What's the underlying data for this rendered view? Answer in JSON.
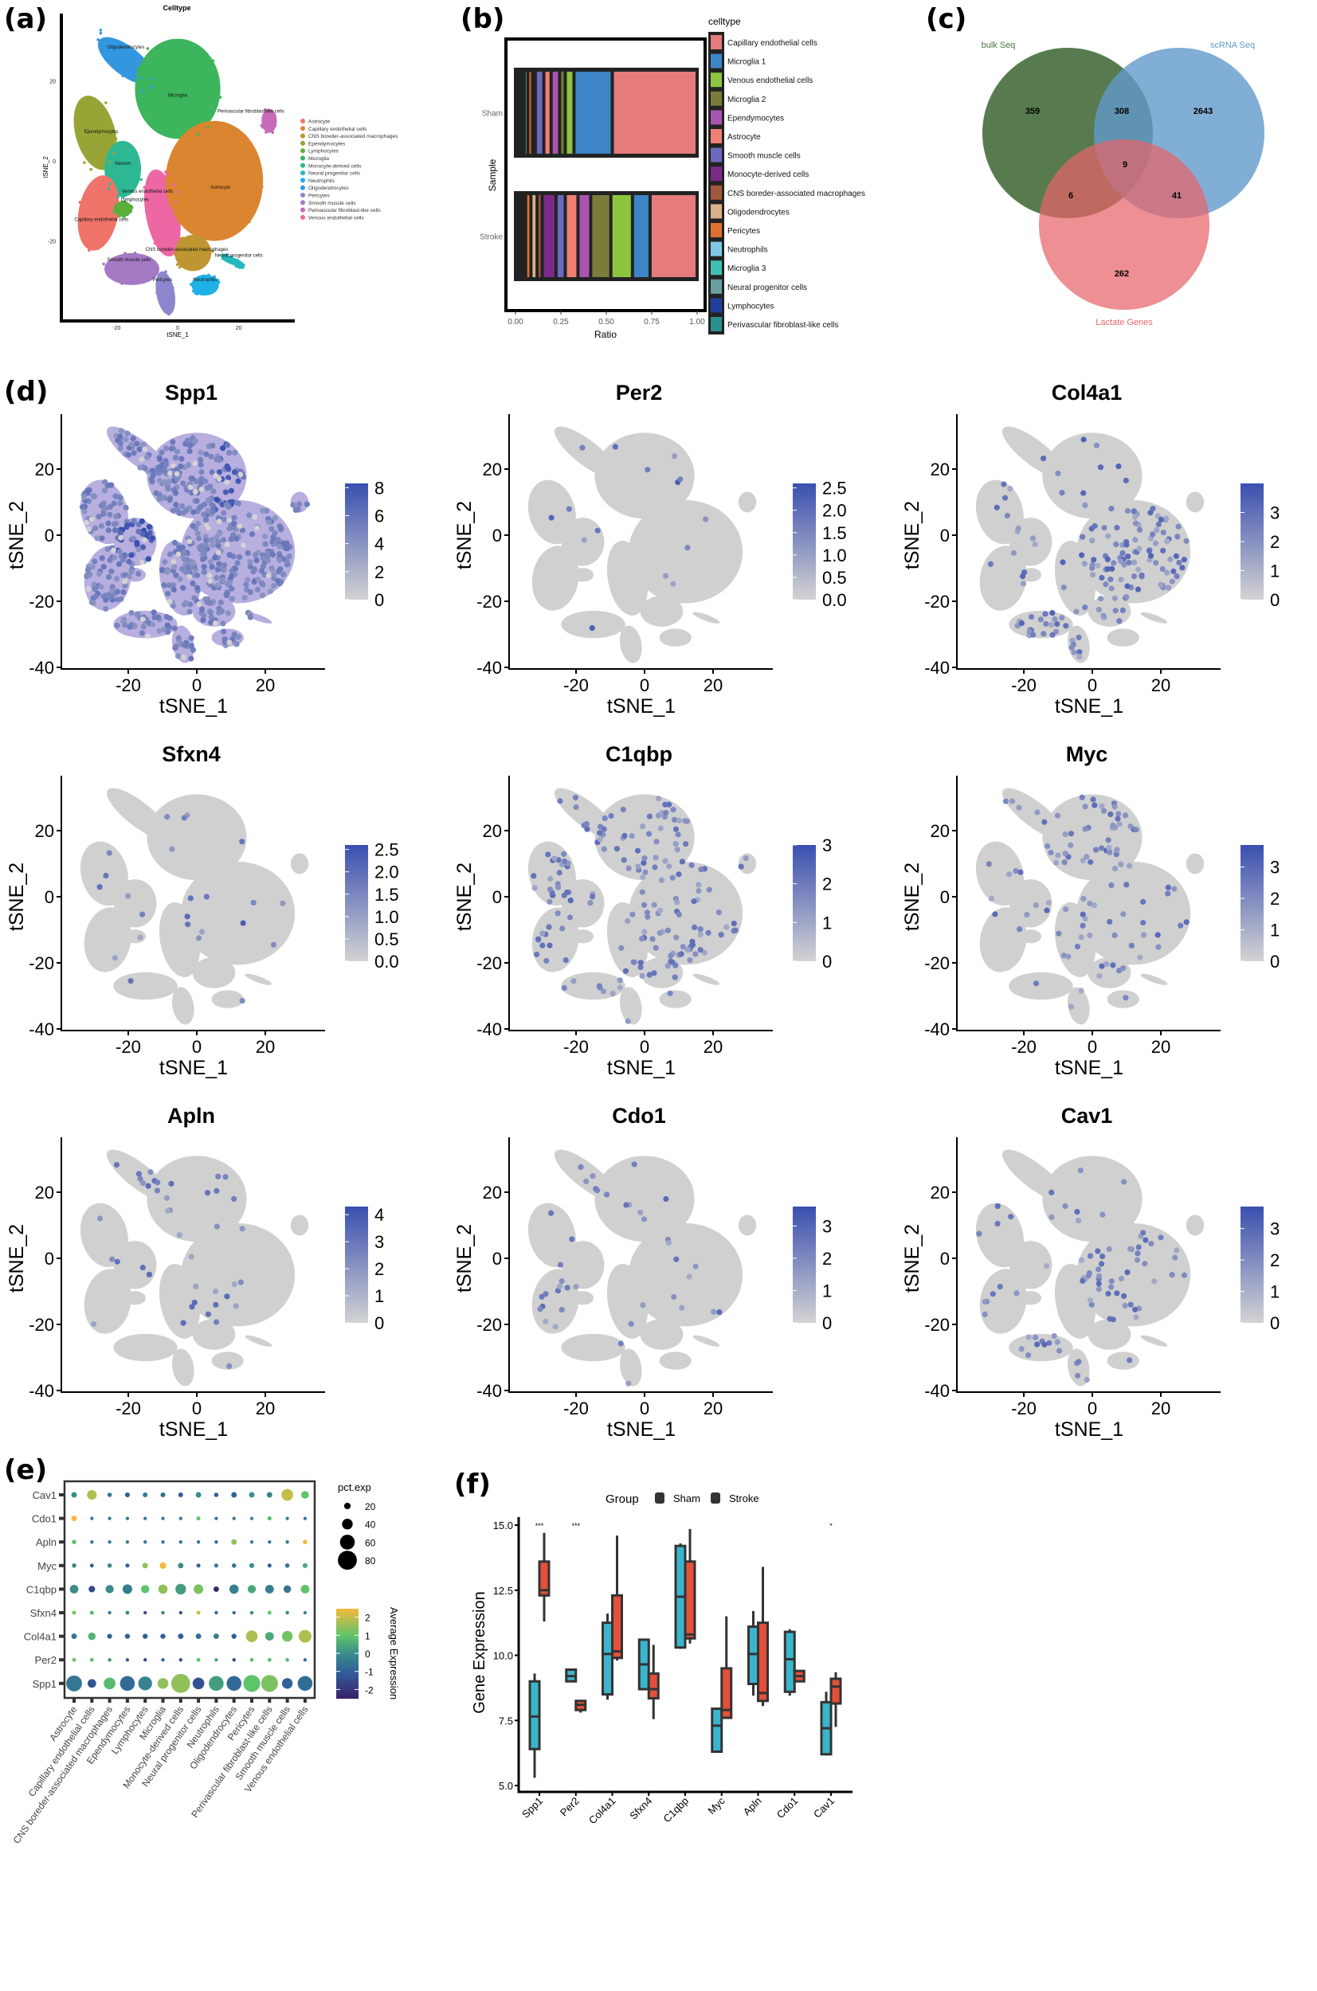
{
  "panel_labels": [
    "(a)",
    "(b)",
    "(c)",
    "(d)",
    "(e)",
    "(f)"
  ],
  "chart_data": [
    {
      "type": "scatter",
      "title": "Celltype",
      "xlabel": "tSNE_1",
      "ylabel": "tSNE_2",
      "xticks": [
        -20,
        0,
        20
      ],
      "yticks": [
        -20,
        0,
        20
      ],
      "legend": [
        {
          "name": "Astrocyte",
          "color": "#F0736A"
        },
        {
          "name": "Capillary endothelial cells",
          "color": "#DB8530"
        },
        {
          "name": "CNS boreder-associated macrophages",
          "color": "#BE9530"
        },
        {
          "name": "Ependymocytes",
          "color": "#98A435"
        },
        {
          "name": "Lymphocytes",
          "color": "#5BAE3C"
        },
        {
          "name": "Microglia",
          "color": "#3DB55C"
        },
        {
          "name": "Monocyte-derived cells",
          "color": "#2DB893"
        },
        {
          "name": "Neural progenitor cells",
          "color": "#22B9BE"
        },
        {
          "name": "Neutrophils",
          "color": "#1FB0E5"
        },
        {
          "name": "Oligodendrocytes",
          "color": "#3397DF"
        },
        {
          "name": "Pericytes",
          "color": "#8C86CC"
        },
        {
          "name": "Smooth muscle cells",
          "color": "#A47AC4"
        },
        {
          "name": "Perivascular fibroblast-like cells",
          "color": "#C76BB8"
        },
        {
          "name": "Venous endothelial cells",
          "color": "#EC67A3"
        }
      ],
      "cluster_labels": [
        "Oligodendrocytes",
        "Microglia",
        "Ependymocytes",
        "Neuron",
        "Capillary endothelial cells",
        "Venous endothelial cells",
        "Lymphocytes",
        "Astrocyte",
        "CNS boreder-associated macrophages",
        "Neural progenitor cells",
        "Smooth muscle cells",
        "Pericytes",
        "Neutrophils",
        "Perivascular fibroblast-like cells"
      ]
    },
    {
      "type": "bar",
      "orientation": "horizontal-stacked",
      "categories": [
        "Sham",
        "Stroke"
      ],
      "xlabel": "Ratio",
      "ylabel": "Sample",
      "xticks": [
        "0.00",
        "0.25",
        "0.50",
        "0.75",
        "1.00"
      ],
      "xlim": [
        0,
        1
      ],
      "legend_title": "celltype",
      "series": [
        {
          "name": "Capillary endothelial cells",
          "color": "#E57B7B",
          "values": [
            0.467,
            0.259
          ]
        },
        {
          "name": "Microglia 1",
          "color": "#3D85C6",
          "values": [
            0.211,
            0.097
          ]
        },
        {
          "name": "Venous endothelial cells",
          "color": "#8CC63F",
          "values": [
            0.048,
            0.119
          ]
        },
        {
          "name": "Microglia 2",
          "color": "#7B7B3A",
          "values": [
            0.031,
            0.111
          ]
        },
        {
          "name": "Ependymocytes",
          "color": "#A855B0",
          "values": [
            0.047,
            0.07
          ]
        },
        {
          "name": "Astrocyte",
          "color": "#F07F74",
          "values": [
            0.04,
            0.07
          ]
        },
        {
          "name": "Smooth muscle cells",
          "color": "#6A6AC0",
          "values": [
            0.047,
            0.051
          ]
        },
        {
          "name": "Monocyte-derived cells",
          "color": "#7B2A8A",
          "values": [
            0.005,
            0.076
          ]
        },
        {
          "name": "CNS boreder-associated macrophages",
          "color": "#A0583A",
          "values": [
            0.005,
            0.028
          ]
        },
        {
          "name": "Oligodendrocytes",
          "color": "#D9B38C",
          "values": [
            0.005,
            0.034
          ]
        },
        {
          "name": "Pericytes",
          "color": "#E07030",
          "values": [
            0.026,
            0.029
          ]
        },
        {
          "name": "Neutrophils",
          "color": "#7EC8E3",
          "values": [
            0.02,
            0.015
          ]
        },
        {
          "name": "Microglia 3",
          "color": "#40C0B0",
          "values": [
            0.015,
            0.012
          ]
        },
        {
          "name": "Neural progenitor cells",
          "color": "#6A9FA0",
          "values": [
            0.013,
            0.012
          ]
        },
        {
          "name": "Lymphocytes",
          "color": "#2040A0",
          "values": [
            0.01,
            0.009
          ]
        },
        {
          "name": "Perivascular fibroblast-like cells",
          "color": "#2A9090",
          "values": [
            0.01,
            0.008
          ]
        }
      ]
    },
    {
      "type": "venn",
      "sets": [
        {
          "name": "bulk Seq",
          "color": "#4E7444"
        },
        {
          "name": "scRNA Seq",
          "color": "#619ACB"
        },
        {
          "name": "Lactate Genes",
          "color": "#E8646A"
        }
      ],
      "regions": {
        "bulk_only": "359",
        "bulk_scrna": "308",
        "scrna_only": "2643",
        "all_three": "9",
        "bulk_lactate": "6",
        "scrna_lactate": "41",
        "lactate_only": "262"
      }
    },
    {
      "type": "scatter",
      "subtype": "feature-plot",
      "xlabel": "tSNE_1",
      "ylabel": "tSNE_2",
      "xticks": [
        -20,
        0,
        20
      ],
      "yticks": [
        -40,
        -20,
        0,
        20
      ],
      "low_color": "#D3D3D3",
      "high_color": "#3A4FB0",
      "genes": [
        {
          "title": "Spp1",
          "colorbar_ticks": [
            "0",
            "2",
            "4",
            "6",
            "8"
          ],
          "colorbar_range": [
            0,
            8.3
          ]
        },
        {
          "title": "Per2",
          "colorbar_ticks": [
            "0.0",
            "0.5",
            "1.0",
            "1.5",
            "2.0",
            "2.5"
          ],
          "colorbar_range": [
            0,
            2.6
          ]
        },
        {
          "title": "Col4a1",
          "colorbar_ticks": [
            "0",
            "1",
            "2",
            "3"
          ],
          "colorbar_range": [
            0,
            4.0
          ]
        },
        {
          "title": "Sfxn4",
          "colorbar_ticks": [
            "0.0",
            "0.5",
            "1.0",
            "1.5",
            "2.0",
            "2.5"
          ],
          "colorbar_range": [
            0,
            2.6
          ]
        },
        {
          "title": "C1qbp",
          "colorbar_ticks": [
            "0",
            "1",
            "2",
            "3"
          ],
          "colorbar_range": [
            0,
            3.0
          ]
        },
        {
          "title": "Myc",
          "colorbar_ticks": [
            "0",
            "1",
            "2",
            "3"
          ],
          "colorbar_range": [
            0,
            3.7
          ]
        },
        {
          "title": "Apln",
          "colorbar_ticks": [
            "0",
            "1",
            "2",
            "3",
            "4"
          ],
          "colorbar_range": [
            0,
            4.3
          ]
        },
        {
          "title": "Cdo1",
          "colorbar_ticks": [
            "0",
            "1",
            "2",
            "3"
          ],
          "colorbar_range": [
            0,
            3.6
          ]
        },
        {
          "title": "Cav1",
          "colorbar_ticks": [
            "0",
            "1",
            "2",
            "3"
          ],
          "colorbar_range": [
            0,
            3.7
          ]
        }
      ]
    },
    {
      "type": "dotplot",
      "genes": [
        "Cav1",
        "Cdo1",
        "Apln",
        "Myc",
        "C1qbp",
        "Sfxn4",
        "Col4a1",
        "Per2",
        "Spp1"
      ],
      "celltypes": [
        "Astrocyte",
        "Capillary endothelial cells",
        "CNS boreder-associated macrophages",
        "Ependymocytes",
        "Lymphocytes",
        "Microglia",
        "Monocyte-derived cells",
        "Neural progenitor cells",
        "Neutrophils",
        "Oligodendrocytes",
        "Pericytes",
        "Perivascular fibroblast-like cells",
        "Smooth muscle cells",
        "Venous endothelial cells"
      ],
      "size_legend_title": "pct.exp",
      "size_legend": [
        20,
        40,
        60,
        80
      ],
      "color_legend_title": "Average Expression",
      "color_ticks": [
        2,
        1,
        0,
        -1,
        -2
      ],
      "color_range": [
        -2.5,
        2.5
      ],
      "pct_exp": [
        [
          15,
          35,
          10,
          12,
          12,
          12,
          12,
          15,
          10,
          15,
          15,
          15,
          45,
          25
        ],
        [
          15,
          5,
          5,
          5,
          5,
          5,
          5,
          8,
          5,
          5,
          5,
          8,
          5,
          5
        ],
        [
          10,
          5,
          5,
          5,
          5,
          5,
          5,
          5,
          5,
          15,
          5,
          5,
          5,
          10
        ],
        [
          10,
          7,
          10,
          8,
          15,
          20,
          15,
          8,
          8,
          10,
          12,
          8,
          10,
          12
        ],
        [
          30,
          20,
          28,
          35,
          28,
          33,
          40,
          35,
          15,
          33,
          28,
          30,
          25,
          30
        ],
        [
          8,
          7,
          5,
          7,
          5,
          6,
          5,
          8,
          5,
          5,
          6,
          7,
          6,
          5
        ],
        [
          15,
          25,
          12,
          13,
          13,
          13,
          15,
          15,
          15,
          13,
          45,
          30,
          40,
          50
        ],
        [
          7,
          6,
          5,
          5,
          5,
          5,
          5,
          7,
          5,
          5,
          6,
          6,
          6,
          5
        ],
        [
          65,
          30,
          45,
          60,
          55,
          40,
          80,
          45,
          60,
          60,
          70,
          70,
          40,
          60
        ]
      ],
      "avg_exp": [
        [
          0,
          1.8,
          -0.5,
          -1,
          -0.3,
          -0.7,
          -1,
          0,
          -1,
          -1,
          0,
          -0.2,
          2,
          1
        ],
        [
          2.5,
          -0.5,
          -0.5,
          -0.5,
          -0.5,
          -0.5,
          -0.5,
          1,
          -0.5,
          -0.5,
          -0.3,
          0.8,
          -0.3,
          -0.5
        ],
        [
          1,
          -0.5,
          -0.5,
          -0.5,
          -0.5,
          -0.5,
          -0.5,
          -0.5,
          -0.8,
          1.5,
          -0.3,
          -0.5,
          -0.5,
          2.5
        ],
        [
          0,
          -1,
          0,
          -1,
          1.5,
          2.5,
          0,
          -1,
          -0.5,
          -0.5,
          0,
          -1,
          -0.5,
          0.5
        ],
        [
          0,
          -1.5,
          0,
          -0.3,
          1,
          1.5,
          0.3,
          1.3,
          -2.3,
          -0.3,
          0.5,
          -0.3,
          -0.5,
          1
        ],
        [
          1.2,
          0.8,
          -0.5,
          0,
          -1.5,
          0,
          -1.5,
          2,
          -1,
          -1,
          0,
          1,
          0,
          -0.3
        ],
        [
          -0.5,
          0.7,
          -1,
          -1,
          -1,
          -1,
          -1,
          -0.7,
          -0.3,
          -1,
          1.8,
          0.5,
          1.2,
          1.8
        ],
        [
          1.2,
          0.8,
          0,
          -1,
          -1.5,
          -1,
          -1.5,
          1,
          0.5,
          -1.5,
          0.8,
          0.7,
          0.8,
          -0.5
        ],
        [
          -0.5,
          -1.3,
          0.8,
          -0.8,
          -0.2,
          1.5,
          1.5,
          -1.3,
          0.3,
          -0.8,
          1.0,
          1.3,
          -1,
          -0.7
        ]
      ]
    },
    {
      "type": "boxplot",
      "ylabel": "Gene Expression",
      "yticks": [
        "5.0",
        "7.5",
        "10.0",
        "12.5",
        "15.0"
      ],
      "ylim": [
        5,
        15
      ],
      "legend_title": "Group",
      "groups": [
        {
          "name": "Sham",
          "color": "#3BB5CC"
        },
        {
          "name": "Stroke",
          "color": "#E4503B"
        }
      ],
      "categories": [
        "Spp1",
        "Per2",
        "Col4a1",
        "Sfxn4",
        "C1qbp",
        "Myc",
        "Apln",
        "Cdo1",
        "Cav1"
      ],
      "significance": [
        "***",
        "***",
        "",
        "",
        "",
        "",
        "",
        "",
        "*"
      ],
      "boxes": [
        {
          "Sham": {
            "min": 5.3,
            "q1": 6.4,
            "median": 7.65,
            "q3": 9.0,
            "max": 9.3
          },
          "Stroke": {
            "min": 11.3,
            "q1": 12.3,
            "median": 12.5,
            "q3": 13.6,
            "max": 14.7
          }
        },
        {
          "Sham": {
            "min": 9.0,
            "q1": 9.0,
            "median": 9.2,
            "q3": 9.45,
            "max": 9.45
          },
          "Stroke": {
            "min": 7.8,
            "q1": 7.9,
            "median": 8.1,
            "q3": 8.25,
            "max": 8.25
          }
        },
        {
          "Sham": {
            "min": 8.3,
            "q1": 8.5,
            "median": 10.05,
            "q3": 11.25,
            "max": 11.6
          },
          "Stroke": {
            "min": 9.8,
            "q1": 9.9,
            "median": 10.15,
            "q3": 12.3,
            "max": 14.6
          }
        },
        {
          "Sham": {
            "min": 8.7,
            "q1": 8.7,
            "median": 9.65,
            "q3": 10.6,
            "max": 10.6
          },
          "Stroke": {
            "min": 7.55,
            "q1": 8.35,
            "median": 8.7,
            "q3": 9.3,
            "max": 10.4
          }
        },
        {
          "Sham": {
            "min": 10.25,
            "q1": 10.3,
            "median": 12.25,
            "q3": 14.2,
            "max": 14.3
          },
          "Stroke": {
            "min": 10.45,
            "q1": 10.65,
            "median": 10.8,
            "q3": 13.6,
            "max": 14.85
          }
        },
        {
          "Sham": {
            "min": 6.25,
            "q1": 6.3,
            "median": 7.3,
            "q3": 7.95,
            "max": 7.95
          },
          "Stroke": {
            "min": 7.6,
            "q1": 7.6,
            "median": 7.9,
            "q3": 9.5,
            "max": 11.5
          }
        },
        {
          "Sham": {
            "min": 8.45,
            "q1": 8.9,
            "median": 10.05,
            "q3": 11.1,
            "max": 11.7
          },
          "Stroke": {
            "min": 8.05,
            "q1": 8.25,
            "median": 8.55,
            "q3": 11.25,
            "max": 13.4
          }
        },
        {
          "Sham": {
            "min": 8.45,
            "q1": 8.6,
            "median": 9.85,
            "q3": 10.9,
            "max": 11.0
          },
          "Stroke": {
            "min": 9.0,
            "q1": 9.0,
            "median": 9.2,
            "q3": 9.4,
            "max": 9.4
          }
        },
        {
          "Sham": {
            "min": 6.15,
            "q1": 6.2,
            "median": 7.2,
            "q3": 8.2,
            "max": 8.6
          },
          "Stroke": {
            "min": 7.25,
            "q1": 8.15,
            "median": 8.8,
            "q3": 9.1,
            "max": 9.35
          }
        }
      ]
    }
  ]
}
